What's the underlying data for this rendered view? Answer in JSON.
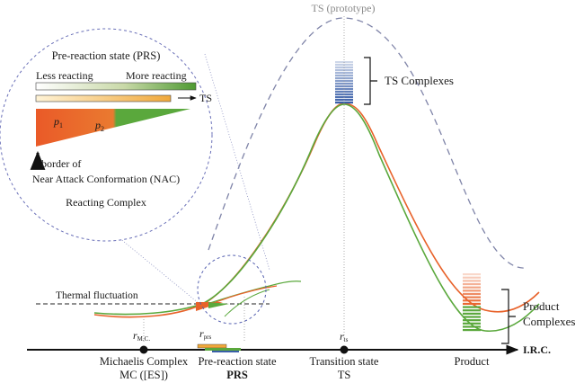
{
  "ts_prototype": "TS (prototype)",
  "ts_complexes": "TS Complexes",
  "product_complexes": [
    "Product",
    "Complexes"
  ],
  "thermal": "Thermal fluctuation",
  "inset": {
    "prs_title": "Pre-reaction state (PRS)",
    "less": "Less reacting",
    "more": "More reacting",
    "ts_arrow": "TS",
    "p1": "p",
    "p1_sub": "1",
    "p2": "p",
    "p2_sub": "2",
    "border": [
      "border of",
      "Near Attack Conformation (NAC)"
    ],
    "reacting": "Reacting Complex"
  },
  "axis": {
    "irc": "I.R.C.",
    "r_mc": "r",
    "r_mc_sub": "M.C.",
    "r_prs": "r",
    "r_prs_sub": "prs",
    "r_ts": "r",
    "r_ts_sub": "ts"
  },
  "stations": {
    "mc": [
      "Michaelis Complex",
      "MC ([ES])"
    ],
    "prs": [
      "Pre-reaction state",
      "PRS"
    ],
    "ts": [
      "Transition state",
      "TS"
    ],
    "product": "Product"
  },
  "colors": {
    "orange": "#e8622a",
    "green": "#5aa83c",
    "blue": "#3a5fa8",
    "dash": "#7f84a8"
  }
}
